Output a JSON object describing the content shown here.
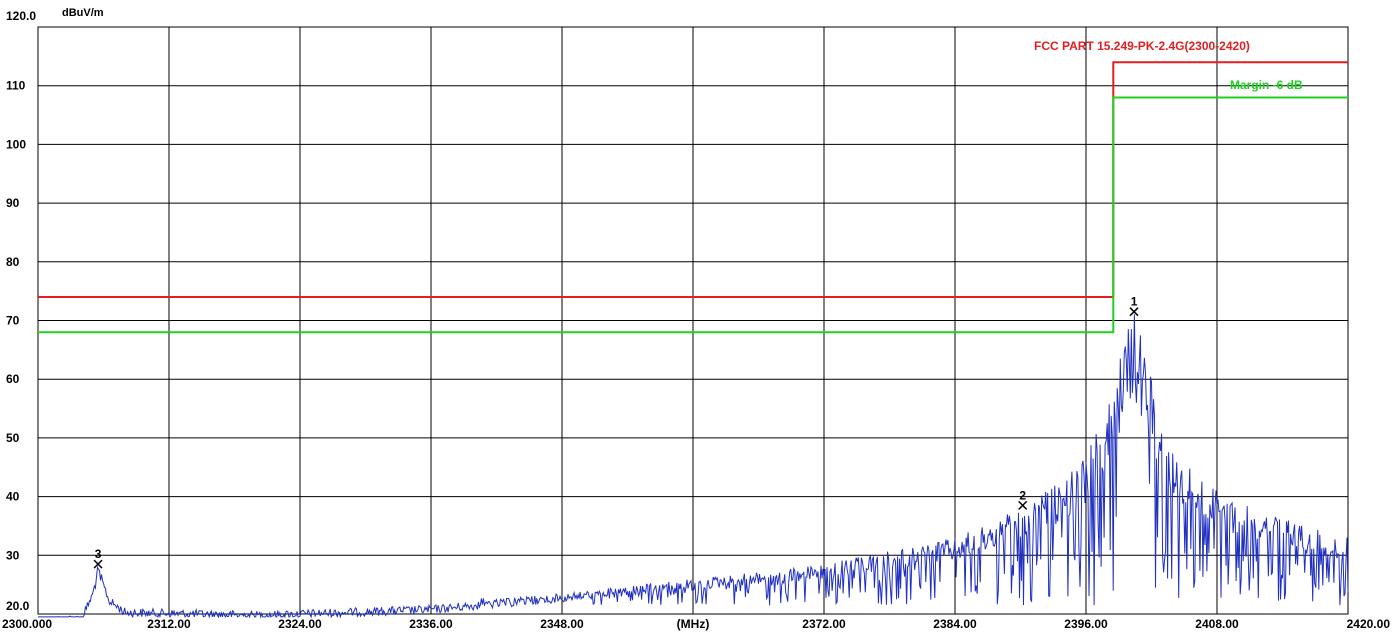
{
  "chart_data": {
    "type": "line",
    "ylabel": "dBuV/m",
    "xlabel": "(MHz)",
    "xlim": [
      2300,
      2420
    ],
    "ylim": [
      20,
      120
    ],
    "grid": true,
    "x_tick_labels": [
      "2300.000",
      "2312.00",
      "2324.00",
      "2336.00",
      "2348.00",
      "(MHz)",
      "2372.00",
      "2384.00",
      "2396.00",
      "2408.00",
      "2420.00"
    ],
    "x_ticks": [
      2300,
      2312,
      2324,
      2336,
      2348,
      2360,
      2372,
      2384,
      2396,
      2408,
      2420
    ],
    "y_tick_labels": [
      "20.0",
      "30",
      "40",
      "50",
      "60",
      "70",
      "80",
      "90",
      "100",
      "110",
      "120.0"
    ],
    "y_ticks": [
      20,
      30,
      40,
      50,
      60,
      70,
      80,
      90,
      100,
      110,
      120
    ],
    "limit_line": {
      "name": "FCC PART 15.249-PK-2.4G(2300-2420)",
      "color": "#e02020",
      "x": [
        2300,
        2398.5,
        2398.5,
        2420
      ],
      "y": [
        74,
        74,
        114,
        114
      ]
    },
    "margin_line": {
      "name": "Margin -6 dB",
      "color": "#20d020",
      "x": [
        2300,
        2398.5,
        2398.5,
        2420
      ],
      "y": [
        68,
        68,
        108,
        108
      ]
    },
    "markers": [
      {
        "label": "1",
        "x": 2400.4,
        "y": 71.5
      },
      {
        "label": "2",
        "x": 2390.2,
        "y": 38.5
      },
      {
        "label": "3",
        "x": 2305.5,
        "y": 28.5
      }
    ],
    "trace_color": "#2030c0",
    "trace_envelope": {
      "x": [
        2300,
        2304,
        2305,
        2305.5,
        2306.5,
        2308,
        2320,
        2336,
        2348,
        2360,
        2372,
        2384,
        2390,
        2394,
        2396,
        2397,
        2398,
        2399,
        2400,
        2400.4,
        2401,
        2402,
        2403,
        2405,
        2408,
        2412,
        2416,
        2420
      ],
      "y": [
        19.5,
        20,
        24,
        28.5,
        23,
        21,
        20.5,
        21.5,
        23.5,
        26,
        28.5,
        33,
        38,
        43,
        47,
        51,
        56,
        63,
        70,
        71.5,
        68,
        60,
        52,
        46,
        41,
        38,
        35,
        33
      ]
    }
  }
}
